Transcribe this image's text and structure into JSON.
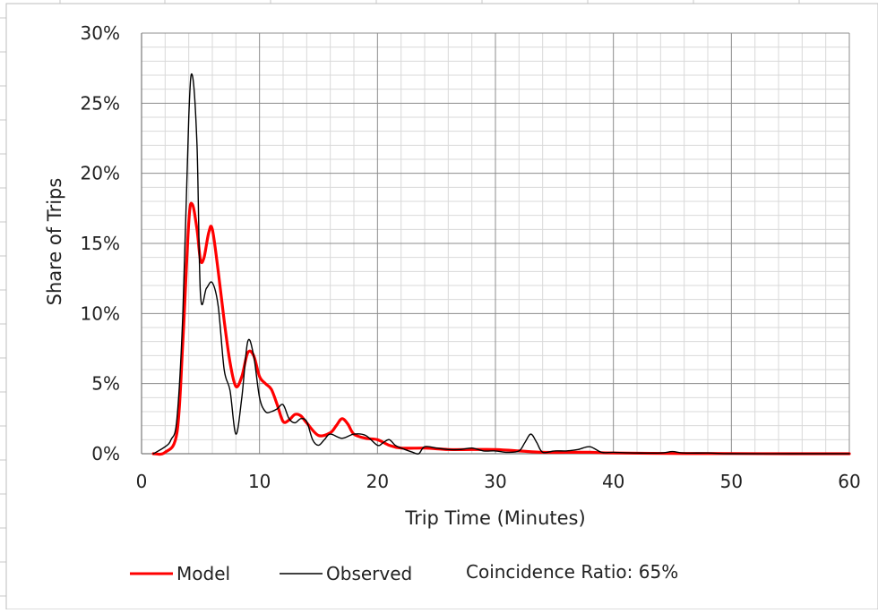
{
  "chart_data": {
    "type": "line",
    "title": "",
    "xlabel": "Trip Time (Minutes)",
    "ylabel": "Share of Trips",
    "xlim": [
      0,
      60
    ],
    "ylim": [
      0,
      30
    ],
    "xticks": [
      "0",
      "10",
      "20",
      "30",
      "40",
      "50",
      "60"
    ],
    "yticks": [
      "0%",
      "5%",
      "10%",
      "15%",
      "20%",
      "25%",
      "30%"
    ],
    "grid": true,
    "legend_position": "bottom",
    "annotation": "Coincidence Ratio: 65%",
    "series": [
      {
        "name": "Model",
        "color": "#ff0000",
        "x": [
          1,
          2,
          3,
          3.5,
          4,
          4.3,
          4.7,
          5,
          5.3,
          5.7,
          6,
          6.5,
          7,
          7.5,
          8,
          8.5,
          9,
          9.5,
          10,
          10.5,
          11,
          11.5,
          12,
          12.5,
          13,
          13.5,
          14,
          15,
          16,
          16.5,
          17,
          17.5,
          18,
          19,
          20,
          21,
          22,
          24,
          26,
          28,
          30,
          32,
          34,
          36,
          38,
          40,
          45,
          50,
          55,
          60
        ],
        "y": [
          0,
          0.1,
          1.5,
          8,
          16.5,
          17.8,
          16,
          13.8,
          14,
          15.8,
          16,
          13,
          9.5,
          6.5,
          4.8,
          5.5,
          7.2,
          7,
          5.5,
          5,
          4.6,
          3.5,
          2.3,
          2.4,
          2.8,
          2.7,
          2.2,
          1.3,
          1.5,
          2,
          2.5,
          2.1,
          1.4,
          1.1,
          1,
          0.6,
          0.4,
          0.4,
          0.3,
          0.3,
          0.3,
          0.2,
          0.1,
          0.1,
          0.1,
          0.05,
          0.02,
          0.01,
          0,
          0
        ]
      },
      {
        "name": "Observed",
        "color": "#000000",
        "x": [
          1,
          2,
          2.5,
          3,
          3.5,
          4,
          4.3,
          4.7,
          5,
          5.5,
          6,
          6.5,
          7,
          7.5,
          8,
          8.5,
          9,
          9.5,
          10,
          10.5,
          11,
          11.5,
          12,
          12.5,
          13,
          13.5,
          14,
          14.5,
          15,
          15.5,
          16,
          17,
          18,
          19,
          20,
          20.5,
          21,
          21.5,
          22,
          23,
          23.5,
          24,
          25,
          26,
          27,
          28,
          29,
          30,
          31,
          32,
          32.5,
          33,
          33.5,
          34,
          35,
          36,
          37,
          38,
          39,
          40,
          42,
          44,
          45,
          46,
          48,
          50,
          55,
          60
        ],
        "y": [
          0,
          0.5,
          1,
          2.5,
          10,
          24,
          27,
          22,
          11.3,
          11.8,
          12.2,
          10.5,
          6,
          4.5,
          1.4,
          4,
          8,
          7,
          4,
          3,
          3,
          3.2,
          3.5,
          2.5,
          2.2,
          2.5,
          2.3,
          1,
          0.6,
          1,
          1.4,
          1.1,
          1.4,
          1.3,
          0.6,
          0.8,
          1,
          0.6,
          0.4,
          0.1,
          0,
          0.5,
          0.4,
          0.3,
          0.3,
          0.4,
          0.2,
          0.2,
          0.1,
          0.2,
          0.8,
          1.4,
          0.8,
          0.1,
          0.2,
          0.2,
          0.3,
          0.5,
          0.1,
          0.1,
          0.05,
          0.05,
          0.15,
          0.05,
          0.05,
          0,
          0,
          0
        ]
      }
    ]
  }
}
